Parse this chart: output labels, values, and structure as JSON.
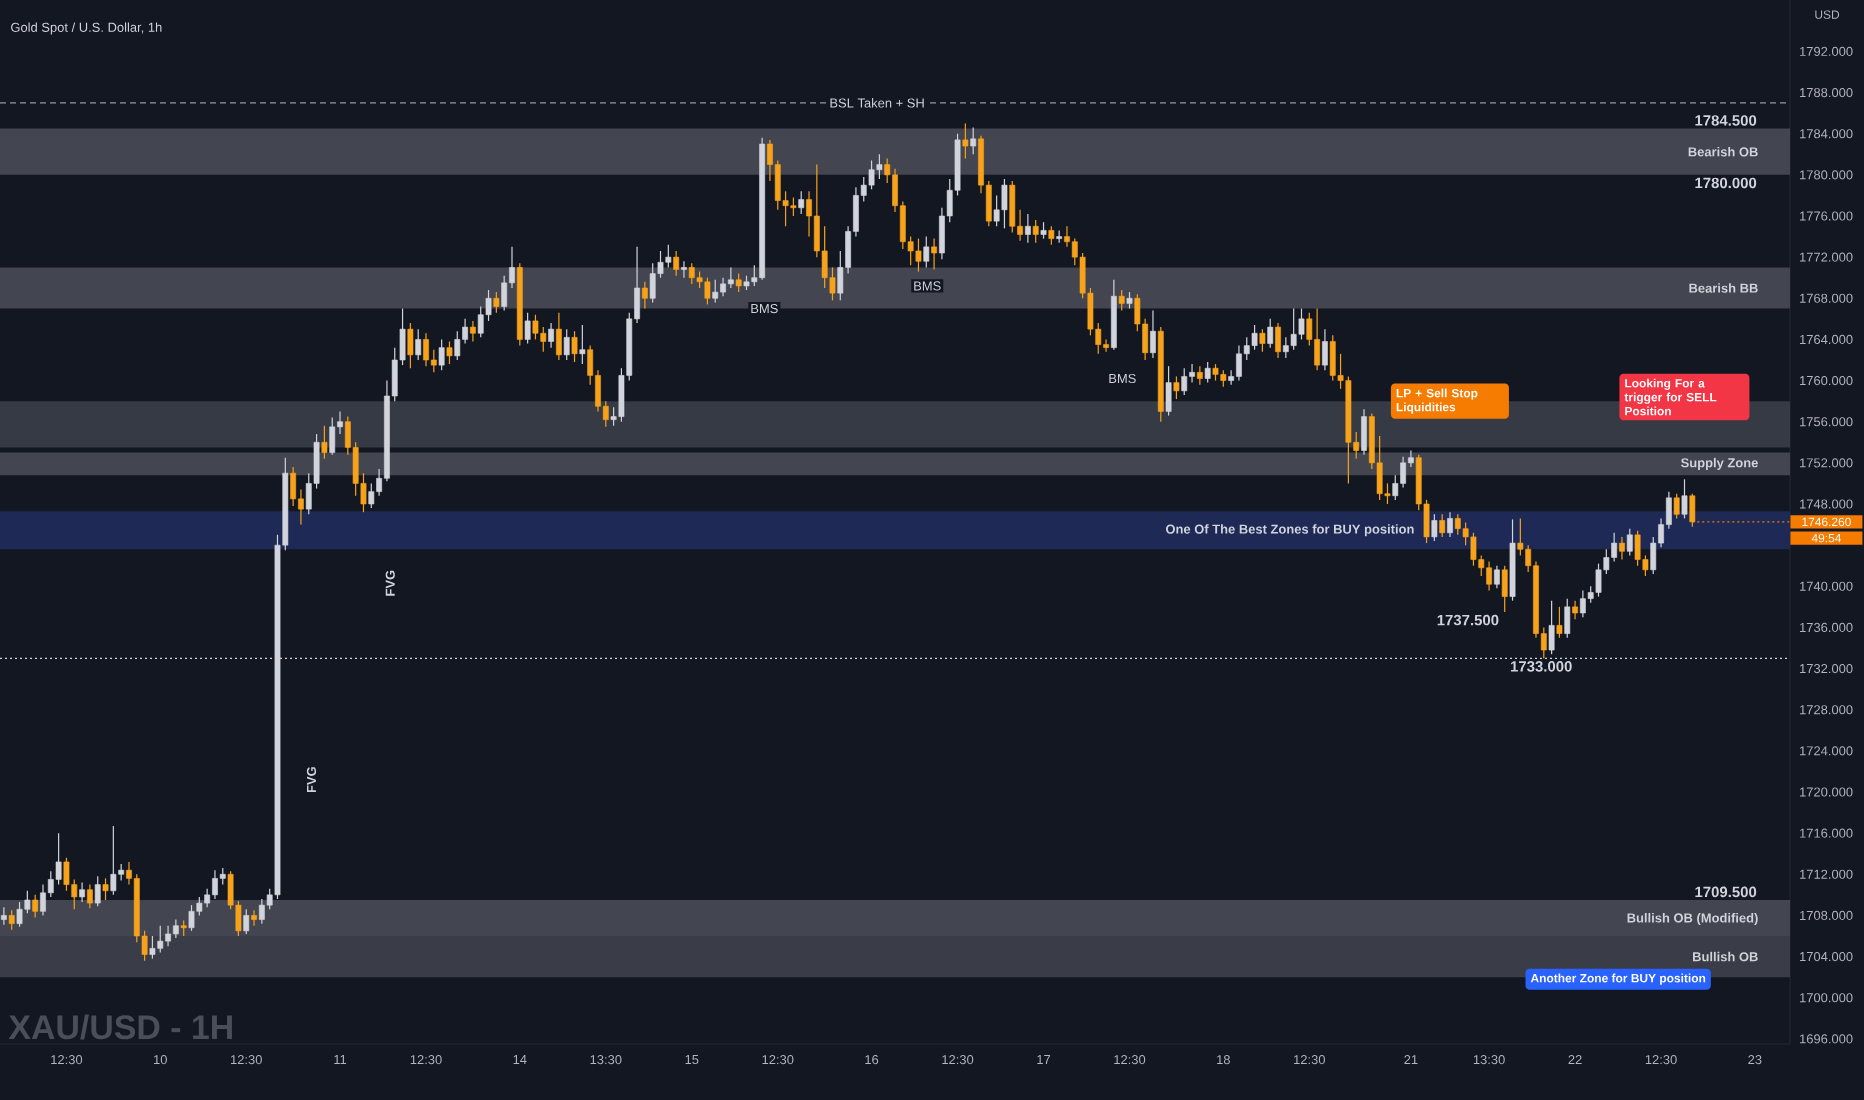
{
  "chart_data": {
    "type": "candlestick",
    "title": "Gold Spot / U.S. Dollar, 1h",
    "ylabel": "USD",
    "ylim": [
      1695.5,
      1797
    ],
    "categories": [
      null,
      null,
      null,
      null,
      null,
      null,
      null,
      null,
      "12:30",
      null,
      null,
      null,
      null,
      null,
      null,
      null,
      null,
      null,
      null,
      null,
      "10",
      null,
      null,
      null,
      null,
      null,
      null,
      null,
      null,
      null,
      null,
      "12:30",
      null,
      null,
      null,
      null,
      null,
      null,
      null,
      null,
      null,
      null,
      null,
      "11",
      null,
      null,
      null,
      null,
      null,
      null,
      null,
      null,
      null,
      null,
      "12:30",
      null,
      null,
      null,
      null,
      null,
      null,
      null,
      null,
      null,
      null,
      null,
      "14",
      null,
      null,
      null,
      null,
      null,
      null,
      null,
      null,
      null,
      null,
      "13:30",
      null,
      null,
      null,
      null,
      null,
      null,
      null,
      null,
      null,
      null,
      "15",
      null,
      null,
      null,
      null,
      null,
      null,
      null,
      null,
      null,
      null,
      "12:30",
      null,
      null,
      null,
      null,
      null,
      null,
      null,
      null,
      null,
      null,
      null,
      "16",
      null,
      null,
      null,
      null,
      null,
      null,
      null,
      null,
      null,
      null,
      "12:30",
      null,
      null,
      null,
      null,
      null,
      null,
      null,
      null,
      null,
      null,
      "17",
      null,
      null,
      null,
      null,
      null,
      null,
      null,
      null,
      null,
      null,
      "12:30",
      null,
      null,
      null,
      null,
      null,
      null,
      null,
      null,
      null,
      null,
      null,
      "18",
      null,
      null,
      null,
      null,
      null,
      null,
      null,
      null,
      null,
      null,
      "12:30",
      null,
      null,
      null,
      null,
      null,
      null,
      null,
      null,
      null,
      null,
      null,
      null,
      "21",
      null,
      null,
      null,
      null,
      null,
      null,
      null,
      null,
      null,
      "13:30",
      null,
      null,
      null,
      null,
      null,
      null,
      null,
      null,
      null,
      null,
      "22",
      null,
      null,
      null,
      null,
      null,
      null,
      null,
      null,
      null,
      null,
      "12:30",
      null,
      null,
      null,
      null,
      null,
      null,
      null,
      null,
      null,
      null,
      null,
      "23"
    ],
    "yticks": [
      {
        "value": 1696,
        "label": "1696.000"
      },
      {
        "value": 1700,
        "label": "1700.000"
      },
      {
        "value": 1704,
        "label": "1704.000"
      },
      {
        "value": 1708,
        "label": "1708.000"
      },
      {
        "value": 1712,
        "label": "1712.000"
      },
      {
        "value": 1716,
        "label": "1716.000"
      },
      {
        "value": 1720,
        "label": "1720.000"
      },
      {
        "value": 1724,
        "label": "1724.000"
      },
      {
        "value": 1728,
        "label": "1728.000"
      },
      {
        "value": 1732,
        "label": "1732.000"
      },
      {
        "value": 1736,
        "label": "1736.000"
      },
      {
        "value": 1740,
        "label": "1740.000"
      },
      {
        "value": 1748,
        "label": "1748.000"
      },
      {
        "value": 1752,
        "label": "1752.000"
      },
      {
        "value": 1756,
        "label": "1756.000"
      },
      {
        "value": 1760,
        "label": "1760.000"
      },
      {
        "value": 1764,
        "label": "1764.000"
      },
      {
        "value": 1768,
        "label": "1768.000"
      },
      {
        "value": 1772,
        "label": "1772.000"
      },
      {
        "value": 1776,
        "label": "1776.000"
      },
      {
        "value": 1780,
        "label": "1780.000"
      },
      {
        "value": 1784,
        "label": "1784.000"
      },
      {
        "value": 1788,
        "label": "1788.000"
      },
      {
        "value": 1792,
        "label": "1792.000"
      }
    ],
    "ohlc": [
      [
        1707.6,
        1708.8,
        1707.1,
        1708
      ],
      [
        1708,
        1708.5,
        1706.6,
        1707.2
      ],
      [
        1707.2,
        1709.3,
        1706.9,
        1708.6
      ],
      [
        1708.6,
        1710.4,
        1708.2,
        1709.5
      ],
      [
        1709.5,
        1710,
        1707.8,
        1708.4
      ],
      [
        1708.4,
        1711,
        1708,
        1710.2
      ],
      [
        1710.2,
        1712.3,
        1709.8,
        1711.5
      ],
      [
        1711.5,
        1716,
        1711,
        1713.2
      ],
      [
        1713.2,
        1713.6,
        1710.4,
        1711
      ],
      [
        1711,
        1711.5,
        1708.6,
        1709.8
      ],
      [
        1709.8,
        1711.2,
        1709.3,
        1710.5
      ],
      [
        1710.5,
        1711,
        1708.7,
        1709.2
      ],
      [
        1709.2,
        1711.8,
        1708.9,
        1711
      ],
      [
        1711,
        1711.6,
        1709.5,
        1710.4
      ],
      [
        1710.4,
        1716.7,
        1710,
        1712
      ],
      [
        1712,
        1713,
        1711.4,
        1712.4
      ],
      [
        1712.4,
        1713.2,
        1711,
        1711.6
      ],
      [
        1711.6,
        1712,
        1705.4,
        1706
      ],
      [
        1706,
        1706.5,
        1703.6,
        1704.2
      ],
      [
        1704.2,
        1706,
        1703.8,
        1704.8
      ],
      [
        1704.8,
        1707,
        1704.4,
        1705.5
      ],
      [
        1705.5,
        1707,
        1705,
        1706.2
      ],
      [
        1706.2,
        1707.6,
        1705.8,
        1707
      ],
      [
        1707,
        1707.5,
        1706,
        1706.8
      ],
      [
        1706.8,
        1709,
        1706.5,
        1708.4
      ],
      [
        1708.4,
        1709.8,
        1708,
        1709.2
      ],
      [
        1709.2,
        1710.6,
        1708.8,
        1710
      ],
      [
        1710,
        1712.4,
        1709.6,
        1711.6
      ],
      [
        1711.6,
        1712.6,
        1711,
        1712
      ],
      [
        1712,
        1712.3,
        1708.6,
        1709
      ],
      [
        1709,
        1709.4,
        1706,
        1706.5
      ],
      [
        1706.5,
        1708.6,
        1706.2,
        1708
      ],
      [
        1708,
        1708.5,
        1707,
        1707.6
      ],
      [
        1707.6,
        1709.6,
        1707.2,
        1709
      ],
      [
        1709,
        1710.6,
        1708.6,
        1710
      ],
      [
        1710,
        1745,
        1709.6,
        1744
      ],
      [
        1744,
        1752.5,
        1743.5,
        1751
      ],
      [
        1751,
        1751.6,
        1747.8,
        1748.5
      ],
      [
        1748.5,
        1749.4,
        1746,
        1747.5
      ],
      [
        1747.5,
        1751,
        1747,
        1750
      ],
      [
        1750,
        1754.8,
        1749.5,
        1754
      ],
      [
        1754,
        1755.6,
        1752.4,
        1753
      ],
      [
        1753,
        1756.4,
        1752.8,
        1755.5
      ],
      [
        1755.5,
        1757,
        1754.8,
        1756
      ],
      [
        1756,
        1756.5,
        1752.8,
        1753.5
      ],
      [
        1753.5,
        1754,
        1748.8,
        1750
      ],
      [
        1750,
        1751,
        1747.2,
        1748
      ],
      [
        1748,
        1750,
        1747.6,
        1749.2
      ],
      [
        1749.2,
        1751.4,
        1748.8,
        1750.5
      ],
      [
        1750.5,
        1760,
        1750.2,
        1758.5
      ],
      [
        1758.5,
        1763.2,
        1758,
        1762
      ],
      [
        1762,
        1767,
        1761.5,
        1765
      ],
      [
        1765,
        1765.6,
        1761.2,
        1762.5
      ],
      [
        1762.5,
        1765,
        1762,
        1764
      ],
      [
        1764,
        1764.6,
        1761.4,
        1762
      ],
      [
        1762,
        1763,
        1760.8,
        1761.5
      ],
      [
        1761.5,
        1764,
        1761,
        1763.2
      ],
      [
        1763.2,
        1763.8,
        1761.6,
        1762.4
      ],
      [
        1762.4,
        1764.8,
        1762,
        1764
      ],
      [
        1764,
        1766,
        1763.6,
        1765.2
      ],
      [
        1765.2,
        1765.8,
        1763.8,
        1764.6
      ],
      [
        1764.6,
        1767.2,
        1764.2,
        1766.4
      ],
      [
        1766.4,
        1768.8,
        1765.8,
        1768
      ],
      [
        1768,
        1768.6,
        1766.6,
        1767.2
      ],
      [
        1767.2,
        1770.2,
        1766.8,
        1769.5
      ],
      [
        1769.5,
        1773,
        1769,
        1771
      ],
      [
        1771,
        1771.4,
        1763.4,
        1764
      ],
      [
        1764,
        1766.6,
        1763.6,
        1765.8
      ],
      [
        1765.8,
        1766.4,
        1764,
        1764.6
      ],
      [
        1764.6,
        1765.2,
        1762.8,
        1763.8
      ],
      [
        1763.8,
        1765.6,
        1763.2,
        1765
      ],
      [
        1765,
        1766.6,
        1762,
        1762.5
      ],
      [
        1762.5,
        1765,
        1762,
        1764.2
      ],
      [
        1764.2,
        1764.8,
        1761.8,
        1762.6
      ],
      [
        1762.6,
        1765.4,
        1761.6,
        1763
      ],
      [
        1763,
        1763.4,
        1759.6,
        1760.5
      ],
      [
        1760.5,
        1761,
        1757,
        1757.5
      ],
      [
        1757.5,
        1758,
        1755.5,
        1756.2
      ],
      [
        1756.2,
        1757.4,
        1755.6,
        1756.5
      ],
      [
        1756.5,
        1761.2,
        1756,
        1760.5
      ],
      [
        1760.5,
        1766.6,
        1760,
        1766
      ],
      [
        1766,
        1773,
        1765.6,
        1769
      ],
      [
        1769,
        1769.6,
        1767,
        1768
      ],
      [
        1768,
        1771.4,
        1767.6,
        1770.4
      ],
      [
        1770.4,
        1772.6,
        1770,
        1771.5
      ],
      [
        1771.5,
        1773.2,
        1771,
        1772
      ],
      [
        1772,
        1772.6,
        1770.2,
        1770.8
      ],
      [
        1770.8,
        1771.6,
        1770,
        1771
      ],
      [
        1771,
        1771.4,
        1769.4,
        1770
      ],
      [
        1770,
        1770.6,
        1769,
        1769.6
      ],
      [
        1769.6,
        1770,
        1767.4,
        1768
      ],
      [
        1768,
        1769.8,
        1767.6,
        1768.6
      ],
      [
        1768.6,
        1770,
        1768.2,
        1769.4
      ],
      [
        1769.4,
        1771,
        1769,
        1769.8
      ],
      [
        1769.8,
        1770.4,
        1768.6,
        1769.2
      ],
      [
        1769.2,
        1770.2,
        1768.8,
        1769.6
      ],
      [
        1769.6,
        1771.2,
        1769.2,
        1770
      ],
      [
        1770,
        1783.6,
        1769.8,
        1783
      ],
      [
        1783,
        1783.4,
        1779.4,
        1781
      ],
      [
        1781,
        1781.4,
        1776.6,
        1777.5
      ],
      [
        1777.5,
        1778.4,
        1775,
        1777
      ],
      [
        1777,
        1777.8,
        1776,
        1776.8
      ],
      [
        1776.8,
        1778.4,
        1776.2,
        1777.6
      ],
      [
        1777.6,
        1778.4,
        1774,
        1776
      ],
      [
        1776,
        1781,
        1772,
        1772.6
      ],
      [
        1772.6,
        1775,
        1769,
        1770
      ],
      [
        1770,
        1771,
        1767.8,
        1768.5
      ],
      [
        1768.5,
        1772.6,
        1767.8,
        1771
      ],
      [
        1771,
        1775,
        1770.4,
        1774.5
      ],
      [
        1774.5,
        1778.8,
        1774,
        1778
      ],
      [
        1778,
        1779.8,
        1777.4,
        1779
      ],
      [
        1779,
        1781.4,
        1778.6,
        1780.5
      ],
      [
        1780.5,
        1782,
        1779.6,
        1781
      ],
      [
        1781,
        1781.6,
        1779.2,
        1780
      ],
      [
        1780,
        1780.6,
        1776.4,
        1777
      ],
      [
        1777,
        1777.4,
        1772.8,
        1773.5
      ],
      [
        1773.5,
        1774,
        1771.2,
        1772.6
      ],
      [
        1772.6,
        1773.8,
        1770.6,
        1771.6
      ],
      [
        1771.6,
        1774,
        1771,
        1773
      ],
      [
        1773,
        1773.8,
        1770.8,
        1772.4
      ],
      [
        1772.4,
        1776.8,
        1771.8,
        1776
      ],
      [
        1776,
        1779.6,
        1775.4,
        1778.5
      ],
      [
        1778.5,
        1784,
        1778,
        1783.4
      ],
      [
        1783.4,
        1785,
        1781.6,
        1782.8
      ],
      [
        1782.8,
        1784.6,
        1782,
        1783.5
      ],
      [
        1783.5,
        1783.8,
        1778.2,
        1779
      ],
      [
        1779,
        1779.4,
        1775,
        1775.5
      ],
      [
        1775.5,
        1778,
        1775,
        1776.6
      ],
      [
        1776.6,
        1779.6,
        1774.8,
        1779
      ],
      [
        1779,
        1779.4,
        1774.4,
        1775
      ],
      [
        1775,
        1776.6,
        1773.6,
        1774.2
      ],
      [
        1774.2,
        1776.2,
        1773.4,
        1775
      ],
      [
        1775,
        1775.6,
        1773.4,
        1774.2
      ],
      [
        1774.2,
        1775.4,
        1773.8,
        1774.6
      ],
      [
        1774.6,
        1775,
        1773.2,
        1773.8
      ],
      [
        1773.8,
        1774.6,
        1773.4,
        1774
      ],
      [
        1774,
        1775,
        1773,
        1773.5
      ],
      [
        1773.5,
        1773.8,
        1771.2,
        1772
      ],
      [
        1772,
        1772.4,
        1768,
        1768.5
      ],
      [
        1768.5,
        1769,
        1764.4,
        1765
      ],
      [
        1765,
        1765.6,
        1762.6,
        1763.5
      ],
      [
        1763.5,
        1764,
        1762.8,
        1763.2
      ],
      [
        1763.2,
        1769.8,
        1763,
        1768.2
      ],
      [
        1768.2,
        1768.8,
        1766.8,
        1767.5
      ],
      [
        1767.5,
        1768.6,
        1767,
        1768
      ],
      [
        1768,
        1768.4,
        1764.8,
        1765.5
      ],
      [
        1765.5,
        1766,
        1762,
        1762.7
      ],
      [
        1762.7,
        1766.8,
        1762.2,
        1764.8
      ],
      [
        1764.8,
        1765.2,
        1756,
        1757
      ],
      [
        1757,
        1761.4,
        1756.6,
        1759.8
      ],
      [
        1759.8,
        1760.4,
        1758.2,
        1759
      ],
      [
        1759,
        1761.2,
        1758.6,
        1760.4
      ],
      [
        1760.4,
        1761.6,
        1759.8,
        1760.8
      ],
      [
        1760.8,
        1761.4,
        1759.6,
        1760.2
      ],
      [
        1760.2,
        1761.8,
        1759.8,
        1761.2
      ],
      [
        1761.2,
        1761.6,
        1760,
        1760.6
      ],
      [
        1760.6,
        1761,
        1759.4,
        1760
      ],
      [
        1760,
        1761,
        1759.6,
        1760.4
      ],
      [
        1760.4,
        1763.4,
        1760,
        1762.6
      ],
      [
        1762.6,
        1764.2,
        1762,
        1763.4
      ],
      [
        1763.4,
        1765.4,
        1763,
        1764.6
      ],
      [
        1764.6,
        1765,
        1762.8,
        1763.6
      ],
      [
        1763.6,
        1766,
        1763.2,
        1765.2
      ],
      [
        1765.2,
        1765.6,
        1762.2,
        1762.8
      ],
      [
        1762.8,
        1764.2,
        1762.2,
        1763.4
      ],
      [
        1763.4,
        1767,
        1763,
        1764.5
      ],
      [
        1764.5,
        1767,
        1764,
        1766
      ],
      [
        1766,
        1766.6,
        1763.4,
        1764
      ],
      [
        1764,
        1767,
        1761,
        1761.5
      ],
      [
        1761.5,
        1765,
        1761,
        1763.8
      ],
      [
        1763.8,
        1764.4,
        1760,
        1760.5
      ],
      [
        1760.5,
        1762.6,
        1759.2,
        1760
      ],
      [
        1760,
        1760.4,
        1750,
        1754
      ],
      [
        1754,
        1755,
        1752.4,
        1753.2
      ],
      [
        1753.2,
        1757.2,
        1752.8,
        1756.5
      ],
      [
        1756.5,
        1756.8,
        1751.4,
        1752
      ],
      [
        1752,
        1754.6,
        1748.4,
        1749
      ],
      [
        1749,
        1750,
        1748,
        1748.8
      ],
      [
        1748.8,
        1750.8,
        1748.4,
        1750
      ],
      [
        1750,
        1752.6,
        1749.6,
        1752
      ],
      [
        1752,
        1753.2,
        1751.6,
        1752.5
      ],
      [
        1752.5,
        1752.8,
        1747.4,
        1748
      ],
      [
        1748,
        1748.4,
        1744.2,
        1744.8
      ],
      [
        1744.8,
        1747,
        1744.4,
        1746.4
      ],
      [
        1746.4,
        1747,
        1744.8,
        1745.2
      ],
      [
        1745.2,
        1747.2,
        1744.8,
        1746.6
      ],
      [
        1746.6,
        1747,
        1745,
        1745.6
      ],
      [
        1745.6,
        1746.2,
        1744,
        1744.8
      ],
      [
        1744.8,
        1745.2,
        1742,
        1742.6
      ],
      [
        1742.6,
        1743,
        1741,
        1741.8
      ],
      [
        1741.8,
        1742.4,
        1739.6,
        1740.2
      ],
      [
        1740.2,
        1742,
        1739.8,
        1741.6
      ],
      [
        1741.6,
        1742,
        1737.5,
        1739
      ],
      [
        1739,
        1746.5,
        1738.6,
        1744.2
      ],
      [
        1744.2,
        1746.6,
        1743,
        1743.6
      ],
      [
        1743.6,
        1744,
        1741.4,
        1742
      ],
      [
        1742,
        1742.4,
        1735,
        1735.4
      ],
      [
        1735.4,
        1736,
        1733,
        1733.8
      ],
      [
        1733.8,
        1738.6,
        1733.4,
        1736.2
      ],
      [
        1736.2,
        1738,
        1735,
        1735.4
      ],
      [
        1735.4,
        1738.8,
        1735,
        1738
      ],
      [
        1738,
        1738.6,
        1736.8,
        1737.4
      ],
      [
        1737.4,
        1739.6,
        1737,
        1738.8
      ],
      [
        1738.8,
        1740,
        1738.4,
        1739.4
      ],
      [
        1739.4,
        1742.2,
        1739,
        1741.6
      ],
      [
        1741.6,
        1743.6,
        1741.2,
        1742.8
      ],
      [
        1742.8,
        1745.2,
        1742.4,
        1744.2
      ],
      [
        1744.2,
        1744.8,
        1742.6,
        1743.4
      ],
      [
        1743.4,
        1745.6,
        1743,
        1745
      ],
      [
        1745,
        1745.4,
        1742,
        1742.6
      ],
      [
        1742.6,
        1743,
        1741,
        1741.6
      ],
      [
        1741.6,
        1744.8,
        1741.2,
        1744.2
      ],
      [
        1744.2,
        1746.6,
        1743.8,
        1746
      ],
      [
        1746,
        1749.2,
        1745.6,
        1748.6
      ],
      [
        1748.6,
        1749,
        1746.6,
        1747
      ],
      [
        1747,
        1750.4,
        1746.6,
        1748.8
      ],
      [
        1748.8,
        1749,
        1745.8,
        1746.26
      ],
      null,
      null,
      null,
      null,
      null,
      null,
      null,
      null
    ],
    "colors": [
      "#d1d4dc",
      "#f7a21b",
      "#d1d4dc",
      "#d1d4dc",
      "#f7a21b",
      "#d1d4dc",
      "#d1d4dc",
      "#d1d4dc",
      "#f7a21b",
      "#f7a21b",
      "#d1d4dc",
      "#f7a21b",
      "#d1d4dc",
      "#f7a21b",
      "#d1d4dc",
      "#d1d4dc",
      "#f7a21b",
      "#f7a21b",
      "#f7a21b",
      "#d1d4dc",
      "#d1d4dc",
      "#d1d4dc",
      "#d1d4dc",
      "#f7a21b",
      "#d1d4dc",
      "#d1d4dc",
      "#d1d4dc",
      "#d1d4dc",
      "#d1d4dc",
      "#f7a21b",
      "#f7a21b",
      "#d1d4dc",
      "#f7a21b",
      "#d1d4dc",
      "#d1d4dc",
      "#d1d4dc",
      "#d1d4dc",
      "#f7a21b",
      "#f7a21b",
      "#d1d4dc",
      "#d1d4dc",
      "#f7a21b",
      "#d1d4dc",
      "#d1d4dc",
      "#f7a21b",
      "#f7a21b",
      "#f7a21b",
      "#d1d4dc",
      "#d1d4dc",
      "#d1d4dc",
      "#d1d4dc",
      "#d1d4dc",
      "#f7a21b",
      "#d1d4dc",
      "#f7a21b",
      "#f7a21b",
      "#d1d4dc",
      "#f7a21b",
      "#d1d4dc",
      "#d1d4dc",
      "#f7a21b",
      "#d1d4dc",
      "#d1d4dc",
      "#f7a21b",
      "#d1d4dc",
      "#d1d4dc",
      "#f7a21b",
      "#d1d4dc",
      "#f7a21b",
      "#f7a21b",
      "#d1d4dc",
      "#f7a21b",
      "#d1d4dc",
      "#f7a21b",
      "#d1d4dc",
      "#f7a21b",
      "#f7a21b",
      "#f7a21b",
      "#d1d4dc",
      "#d1d4dc",
      "#d1d4dc",
      "#d1d4dc",
      "#f7a21b",
      "#d1d4dc",
      "#d1d4dc",
      "#d1d4dc",
      "#f7a21b",
      "#d1d4dc",
      "#f7a21b",
      "#f7a21b",
      "#f7a21b",
      "#d1d4dc",
      "#d1d4dc",
      "#d1d4dc",
      "#f7a21b",
      "#d1d4dc",
      "#d1d4dc",
      "#d1d4dc",
      "#f7a21b",
      "#f7a21b",
      "#f7a21b",
      "#f7a21b",
      "#d1d4dc",
      "#f7a21b",
      "#f7a21b",
      "#f7a21b",
      "#f7a21b",
      "#d1d4dc",
      "#d1d4dc",
      "#d1d4dc",
      "#d1d4dc",
      "#d1d4dc",
      "#d1d4dc",
      "#f7a21b",
      "#f7a21b",
      "#f7a21b",
      "#f7a21b",
      "#f7a21b",
      "#d1d4dc",
      "#f7a21b",
      "#d1d4dc",
      "#d1d4dc",
      "#d1d4dc",
      "#f7a21b",
      "#d1d4dc",
      "#f7a21b",
      "#f7a21b",
      "#d1d4dc",
      "#d1d4dc",
      "#f7a21b",
      "#f7a21b",
      "#d1d4dc",
      "#f7a21b",
      "#d1d4dc",
      "#f7a21b",
      "#d1d4dc",
      "#f7a21b",
      "#f7a21b",
      "#f7a21b",
      "#f7a21b",
      "#f7a21b",
      "#f7a21b",
      "#d1d4dc",
      "#f7a21b",
      "#d1d4dc",
      "#f7a21b",
      "#f7a21b",
      "#d1d4dc",
      "#f7a21b",
      "#d1d4dc",
      "#f7a21b",
      "#d1d4dc",
      "#d1d4dc",
      "#f7a21b",
      "#d1d4dc",
      "#f7a21b",
      "#f7a21b",
      "#d1d4dc",
      "#d1d4dc",
      "#d1d4dc",
      "#d1d4dc",
      "#f7a21b",
      "#d1d4dc",
      "#f7a21b",
      "#d1d4dc",
      "#d1d4dc",
      "#d1d4dc",
      "#f7a21b",
      "#f7a21b",
      "#d1d4dc",
      "#f7a21b",
      "#f7a21b",
      "#f7a21b",
      "#f7a21b",
      "#d1d4dc",
      "#f7a21b",
      "#f7a21b",
      "#f7a21b",
      "#d1d4dc",
      "#d1d4dc",
      "#d1d4dc",
      "#f7a21b",
      "#f7a21b",
      "#d1d4dc",
      "#f7a21b",
      "#d1d4dc",
      "#f7a21b",
      "#f7a21b",
      "#f7a21b",
      "#f7a21b",
      "#f7a21b",
      "#d1d4dc",
      "#f7a21b",
      "#d1d4dc",
      "#f7a21b",
      "#f7a21b",
      "#f7a21b",
      "#f7a21b",
      "#d1d4dc",
      "#f7a21b",
      "#d1d4dc",
      "#f7a21b",
      "#d1d4dc",
      "#d1d4dc",
      "#d1d4dc",
      "#d1d4dc",
      "#d1d4dc",
      "#f7a21b",
      "#d1d4dc",
      "#f7a21b",
      "#f7a21b",
      "#d1d4dc",
      "#d1d4dc",
      "#d1d4dc",
      "#f7a21b",
      "#d1d4dc",
      "#f7a21b",
      null,
      null,
      null,
      null,
      null,
      null,
      null,
      null
    ],
    "bands": [
      {
        "axis": "y",
        "from": 1780,
        "to": 1784.5,
        "label": "Bearish OB",
        "color": "#434651"
      },
      {
        "axis": "y",
        "from": 1767,
        "to": 1771,
        "label": "Bearish BB",
        "color": "#434651"
      },
      {
        "axis": "y",
        "from": 1753.5,
        "to": 1758,
        "color": "#363a45"
      },
      {
        "axis": "y",
        "from": 1750.8,
        "to": 1753,
        "label": "Supply Zone",
        "color": "#434651"
      },
      {
        "axis": "y",
        "from": 1743.6,
        "to": 1747.3,
        "label": "One Of The Best Zones for BUY position",
        "color": "#1e2a55"
      },
      {
        "axis": "y",
        "from": 1705.8,
        "to": 1709.5,
        "label": "Bullish OB (Modified)",
        "color": "#434651"
      },
      {
        "axis": "y",
        "from": 1702,
        "to": 1706,
        "label": "Bullish OB",
        "color": "#3a3d47"
      }
    ],
    "ref_lines": [
      {
        "axis": "y",
        "value": 1787,
        "line_style": "dashed",
        "color": "#9598a1"
      },
      {
        "axis": "y",
        "value": 1733,
        "line_style": "dotted",
        "color": "#d1d4dc"
      },
      {
        "axis": "y",
        "value": 1746.26,
        "label": "1746.260",
        "line_style": "dotted",
        "color": "#f57c00"
      }
    ],
    "annotations": [
      {
        "text": "BSL Taken + SH",
        "y": 1787
      },
      {
        "text": "BMS",
        "y": 1767
      },
      {
        "text": "BMS",
        "y": 1769.2
      },
      {
        "text": "BMS",
        "y": 1760.2
      },
      {
        "text": "1784.500",
        "y": 1784.5
      },
      {
        "text": "1780.000",
        "y": 1780
      },
      {
        "text": "1709.500",
        "y": 1709.5
      },
      "1737.500",
      {
        "text": "1733.000",
        "y": 1733
      },
      {
        "text": "FVG",
        "y": 1740.3
      },
      {
        "text": "FVG",
        "y": 1721.2
      },
      {
        "text": "LP + Sell Stop Liquidities",
        "y": 1758
      },
      {
        "text": "Looking For a trigger for SELL Position",
        "y": 1758.4
      },
      {
        "text": "Another Zone for BUY position",
        "y": 1701.8
      },
      "XAU/USD - 1H",
      "49:54"
    ]
  }
}
